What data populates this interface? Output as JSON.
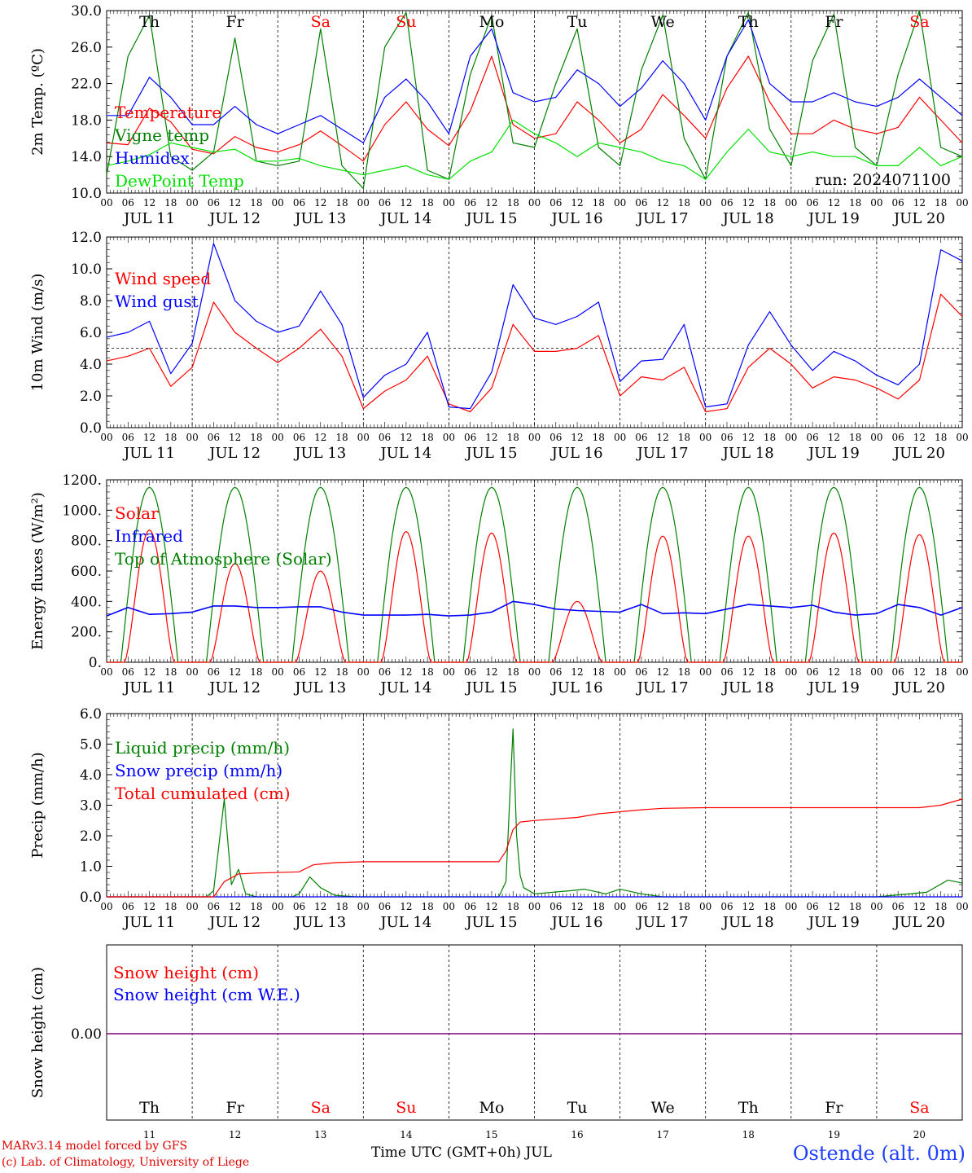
{
  "meta": {
    "model_line": "MARv3.14 model forced by GFS",
    "credit_line": "(c) Lab. of Climatology, University of Liege",
    "time_axis_label": "Time UTC (GMT+0h) JUL",
    "station": "Ostende (alt. 0m)",
    "run_label": "run: 2024071100"
  },
  "colors": {
    "red": "#ff0000",
    "blue": "#0000ff",
    "green": "#008000",
    "lightgreen": "#00e000",
    "purple": "#800080",
    "grid": "#000000"
  },
  "time_axis": {
    "hour_ticks": [
      "00",
      "06",
      "12",
      "18"
    ],
    "end_tick": "00",
    "dates": [
      "JUL 11",
      "JUL 12",
      "JUL 13",
      "JUL 14",
      "JUL 15",
      "JUL 16",
      "JUL 17",
      "JUL 18",
      "JUL 19",
      "JUL 20"
    ],
    "weekdays": [
      "Th",
      "Fr",
      "Sa",
      "Su",
      "Mo",
      "Tu",
      "We",
      "Th",
      "Fr",
      "Sa"
    ],
    "weekday_colors": [
      "black",
      "black",
      "red",
      "red",
      "black",
      "black",
      "black",
      "black",
      "black",
      "red"
    ],
    "day_numbers": [
      "11",
      "12",
      "13",
      "14",
      "15",
      "16",
      "17",
      "18",
      "19",
      "20"
    ]
  },
  "chart_data": [
    {
      "type": "line",
      "ylabel": "2m Temp. (ºC)",
      "ylim": [
        10,
        30
      ],
      "yticks": [
        "10.0",
        "14.0",
        "18.0",
        "22.0",
        "26.0",
        "30.0"
      ],
      "ytick_values": [
        10,
        14,
        18,
        22,
        26,
        30
      ],
      "x_unit": "hours since JUL 11 00 UTC",
      "x": [
        0,
        6,
        12,
        18,
        24,
        30,
        36,
        42,
        48,
        54,
        60,
        66,
        72,
        78,
        84,
        90,
        96,
        102,
        108,
        114,
        120,
        126,
        132,
        138,
        144,
        150,
        156,
        162,
        168,
        174,
        180,
        186,
        192,
        198,
        204,
        210,
        216,
        222,
        228,
        234,
        240
      ],
      "series": [
        {
          "name": "Temperature",
          "color": "#ff0000",
          "values": [
            15.5,
            15.3,
            19.3,
            17.8,
            14.8,
            14.3,
            16.2,
            15.0,
            14.5,
            15.3,
            16.8,
            15.2,
            13.5,
            17.5,
            20.0,
            17.0,
            15.2,
            19.0,
            25.0,
            17.5,
            16.0,
            16.5,
            20.0,
            18.0,
            15.5,
            17.0,
            20.8,
            18.5,
            16.0,
            21.5,
            25.0,
            20.0,
            16.5,
            16.5,
            18.0,
            17.0,
            16.5,
            17.2,
            20.5,
            18.0,
            15.5
          ]
        },
        {
          "name": "Vigne temp",
          "color": "#008000",
          "values": [
            12.0,
            25.0,
            29.5,
            14.0,
            12.5,
            14.5,
            27.0,
            13.5,
            13.0,
            13.5,
            28.0,
            13.0,
            10.5,
            26.0,
            29.8,
            12.5,
            11.5,
            23.0,
            29.5,
            15.5,
            15.0,
            22.0,
            28.0,
            15.0,
            13.0,
            23.5,
            29.5,
            16.0,
            11.5,
            25.0,
            29.8,
            17.0,
            13.0,
            24.5,
            29.6,
            15.0,
            13.0,
            23.0,
            30.0,
            15.0,
            14.0
          ]
        },
        {
          "name": "Humidex",
          "color": "#0000ff",
          "values": [
            18.5,
            18.5,
            22.7,
            20.5,
            17.5,
            17.5,
            19.5,
            17.5,
            16.5,
            17.5,
            18.5,
            17.0,
            15.5,
            20.5,
            22.5,
            20.0,
            16.5,
            25.0,
            28.0,
            21.0,
            20.0,
            20.5,
            23.5,
            22.0,
            19.5,
            21.5,
            24.5,
            22.0,
            18.0,
            25.0,
            29.0,
            22.0,
            20.0,
            20.0,
            21.0,
            20.0,
            19.5,
            20.5,
            22.5,
            20.5,
            18.5
          ]
        },
        {
          "name": "DewPoint Temp",
          "color": "#00e000",
          "values": [
            13.0,
            13.5,
            14.2,
            15.5,
            15.0,
            14.5,
            14.8,
            13.5,
            13.5,
            13.8,
            13.0,
            12.5,
            12.0,
            12.5,
            13.0,
            12.0,
            11.5,
            13.5,
            14.5,
            18.0,
            16.5,
            15.5,
            14.0,
            15.5,
            15.0,
            14.5,
            13.5,
            13.0,
            11.5,
            14.5,
            17.0,
            14.5,
            14.0,
            14.5,
            14.0,
            14.0,
            13.0,
            13.0,
            15.0,
            13.0,
            14.0
          ]
        }
      ],
      "annotation": "run: 2024071100"
    },
    {
      "type": "line",
      "ylabel": "10m Wind (m/s)",
      "ylim": [
        0,
        12
      ],
      "yticks": [
        "0.0",
        "2.0",
        "4.0",
        "6.0",
        "8.0",
        "10.0",
        "12.0"
      ],
      "ytick_values": [
        0,
        2,
        4,
        6,
        8,
        10,
        12
      ],
      "reference_line": 5.0,
      "x": [
        0,
        6,
        12,
        18,
        24,
        30,
        36,
        42,
        48,
        54,
        60,
        66,
        72,
        78,
        84,
        90,
        96,
        102,
        108,
        114,
        120,
        126,
        132,
        138,
        144,
        150,
        156,
        162,
        168,
        174,
        180,
        186,
        192,
        198,
        204,
        210,
        216,
        222,
        228,
        234,
        240
      ],
      "series": [
        {
          "name": "Wind speed",
          "color": "#ff0000",
          "values": [
            4.2,
            4.5,
            5.0,
            2.6,
            3.8,
            7.9,
            6.0,
            5.0,
            4.1,
            5.0,
            6.2,
            4.5,
            1.2,
            2.3,
            3.0,
            4.5,
            1.5,
            1.0,
            2.5,
            6.5,
            4.8,
            4.8,
            5.0,
            5.8,
            2.0,
            3.2,
            3.0,
            3.8,
            1.0,
            1.2,
            3.8,
            5.0,
            4.0,
            2.5,
            3.2,
            3.0,
            2.5,
            1.8,
            3.0,
            8.4,
            7.0
          ]
        },
        {
          "name": "Wind gust",
          "color": "#0000ff",
          "values": [
            5.7,
            6.0,
            6.7,
            3.4,
            5.3,
            11.6,
            8.0,
            6.7,
            6.0,
            6.4,
            8.6,
            6.5,
            1.9,
            3.3,
            4.0,
            6.0,
            1.3,
            1.2,
            3.5,
            9.0,
            6.9,
            6.5,
            7.0,
            7.9,
            2.9,
            4.2,
            4.3,
            6.5,
            1.3,
            1.5,
            5.2,
            7.3,
            5.2,
            3.6,
            4.8,
            4.2,
            3.3,
            2.7,
            4.0,
            11.2,
            10.5
          ]
        }
      ]
    },
    {
      "type": "line",
      "ylabel": "Energy fluxes (W/m²)",
      "ylim": [
        0,
        1200
      ],
      "yticks": [
        "0.",
        "200.",
        "400.",
        "600.",
        "800.",
        "1000.",
        "1200."
      ],
      "ytick_values": [
        0,
        200,
        400,
        600,
        800,
        1000,
        1200
      ],
      "toa_peak": 1150,
      "solar_daily_peaks": [
        870,
        650,
        600,
        860,
        850,
        400,
        830,
        830,
        850,
        840
      ],
      "series_names": [
        {
          "name": "Solar",
          "color": "#ff0000"
        },
        {
          "name": "Infrared",
          "color": "#0000ff"
        },
        {
          "name": "Top of Atmosphere (Solar)",
          "color": "#008000"
        }
      ],
      "infrared": {
        "x": [
          0,
          6,
          12,
          18,
          24,
          30,
          36,
          42,
          48,
          54,
          60,
          66,
          72,
          78,
          84,
          90,
          96,
          102,
          108,
          114,
          120,
          126,
          132,
          138,
          144,
          150,
          156,
          162,
          168,
          174,
          180,
          186,
          192,
          198,
          204,
          210,
          216,
          222,
          228,
          234,
          240
        ],
        "values": [
          305,
          360,
          315,
          320,
          330,
          370,
          370,
          360,
          360,
          365,
          365,
          330,
          310,
          310,
          310,
          315,
          305,
          310,
          330,
          400,
          380,
          350,
          340,
          335,
          330,
          380,
          320,
          325,
          320,
          350,
          380,
          370,
          360,
          375,
          330,
          310,
          320,
          380,
          360,
          310,
          360
        ]
      }
    },
    {
      "type": "line",
      "ylabel": "Precip (mm/h)",
      "ylim": [
        0,
        6
      ],
      "yticks": [
        "0.0",
        "1.0",
        "2.0",
        "3.0",
        "4.0",
        "5.0",
        "6.0"
      ],
      "ytick_values": [
        0,
        1,
        2,
        3,
        4,
        5,
        6
      ],
      "series": [
        {
          "name": "Liquid precip (mm/h)",
          "color": "#008000",
          "points": [
            [
              0,
              0
            ],
            [
              28,
              0
            ],
            [
              30,
              0.2
            ],
            [
              33,
              3.2
            ],
            [
              35,
              0.4
            ],
            [
              37,
              0.9
            ],
            [
              39,
              0.1
            ],
            [
              42,
              0
            ],
            [
              52,
              0
            ],
            [
              54,
              0.1
            ],
            [
              57,
              0.65
            ],
            [
              60,
              0.3
            ],
            [
              64,
              0.05
            ],
            [
              70,
              0
            ],
            [
              110,
              0
            ],
            [
              112,
              0.5
            ],
            [
              113,
              3.0
            ],
            [
              114,
              5.5
            ],
            [
              115,
              2.0
            ],
            [
              116,
              0.7
            ],
            [
              117,
              0.3
            ],
            [
              120,
              0.1
            ],
            [
              130,
              0.2
            ],
            [
              134,
              0.25
            ],
            [
              140,
              0.1
            ],
            [
              144,
              0.25
            ],
            [
              150,
              0.1
            ],
            [
              156,
              0
            ],
            [
              216,
              0
            ],
            [
              230,
              0.15
            ],
            [
              236,
              0.55
            ],
            [
              240,
              0.45
            ]
          ]
        },
        {
          "name": "Snow precip (mm/h)",
          "color": "#0000ff",
          "points": [
            [
              0,
              0
            ],
            [
              240,
              0
            ]
          ]
        },
        {
          "name": "Total cumulated (cm)",
          "color": "#ff0000",
          "points": [
            [
              0,
              0
            ],
            [
              30,
              0
            ],
            [
              33,
              0.5
            ],
            [
              37,
              0.75
            ],
            [
              42,
              0.78
            ],
            [
              54,
              0.82
            ],
            [
              58,
              1.05
            ],
            [
              64,
              1.12
            ],
            [
              72,
              1.15
            ],
            [
              110,
              1.15
            ],
            [
              112,
              1.5
            ],
            [
              114,
              2.2
            ],
            [
              116,
              2.45
            ],
            [
              120,
              2.5
            ],
            [
              132,
              2.6
            ],
            [
              138,
              2.72
            ],
            [
              150,
              2.85
            ],
            [
              156,
              2.9
            ],
            [
              168,
              2.92
            ],
            [
              228,
              2.92
            ],
            [
              234,
              3.0
            ],
            [
              240,
              3.2
            ]
          ]
        }
      ]
    },
    {
      "type": "line",
      "ylabel": "Snow height (cm)",
      "yticks": [
        "0.00"
      ],
      "series": [
        {
          "name": "Snow height (cm)",
          "color": "#ff0000",
          "values": [
            0,
            0
          ]
        },
        {
          "name": "Snow height (cm W.E.)",
          "color": "#0000ff",
          "values": [
            0,
            0
          ]
        }
      ]
    }
  ]
}
